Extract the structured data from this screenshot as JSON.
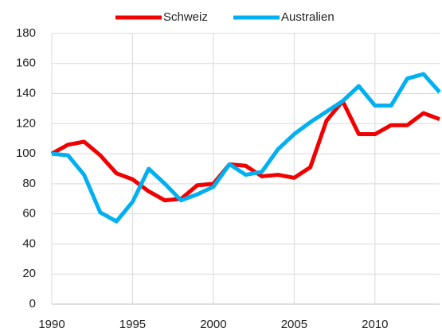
{
  "chart_data": {
    "type": "line",
    "x": [
      1990,
      1991,
      1992,
      1993,
      1994,
      1995,
      1996,
      1997,
      1998,
      1999,
      2000,
      2001,
      2002,
      2003,
      2004,
      2005,
      2006,
      2007,
      2008,
      2009,
      2010,
      2011,
      2012,
      2013,
      2014
    ],
    "series": [
      {
        "name": "Schweiz",
        "color": "#f00000",
        "values": [
          100,
          106,
          108,
          99,
          87,
          83,
          75,
          69,
          70,
          79,
          80,
          93,
          92,
          85,
          86,
          84,
          91,
          122,
          135,
          113,
          113,
          119,
          119,
          127,
          123
        ]
      },
      {
        "name": "Australien",
        "color": "#00b0f0",
        "values": [
          100,
          99,
          86,
          61,
          55,
          68,
          90,
          80,
          69,
          73,
          78,
          93,
          86,
          88,
          103,
          113,
          121,
          128,
          135,
          145,
          132,
          132,
          150,
          153,
          141
        ]
      }
    ],
    "xlim": [
      1990,
      2014
    ],
    "xticks": [
      1990,
      1995,
      2000,
      2005,
      2010
    ],
    "ylim": [
      0,
      180
    ],
    "yticks": [
      0,
      20,
      40,
      60,
      80,
      100,
      120,
      140,
      160,
      180
    ],
    "grid": true,
    "legend": "top"
  }
}
